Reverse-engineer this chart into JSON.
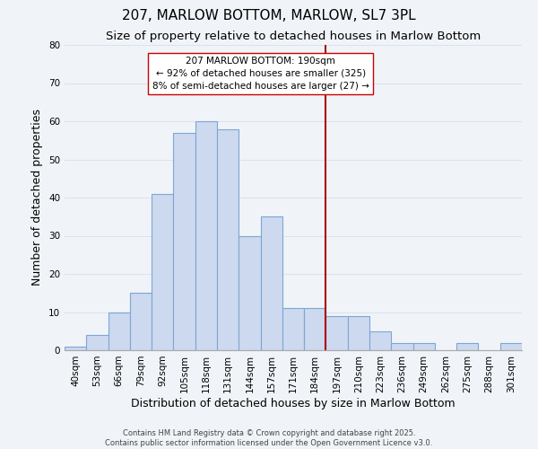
{
  "title": "207, MARLOW BOTTOM, MARLOW, SL7 3PL",
  "subtitle": "Size of property relative to detached houses in Marlow Bottom",
  "xlabel": "Distribution of detached houses by size in Marlow Bottom",
  "ylabel": "Number of detached properties",
  "bar_labels": [
    "40sqm",
    "53sqm",
    "66sqm",
    "79sqm",
    "92sqm",
    "105sqm",
    "118sqm",
    "131sqm",
    "144sqm",
    "157sqm",
    "171sqm",
    "184sqm",
    "197sqm",
    "210sqm",
    "223sqm",
    "236sqm",
    "249sqm",
    "262sqm",
    "275sqm",
    "288sqm",
    "301sqm"
  ],
  "bar_heights": [
    1,
    4,
    10,
    15,
    41,
    57,
    60,
    58,
    30,
    35,
    11,
    11,
    9,
    9,
    5,
    2,
    2,
    0,
    2,
    0,
    2
  ],
  "bar_color": "#ccd9ee",
  "bar_edgecolor": "#7da6d4",
  "ylim": [
    0,
    80
  ],
  "yticks": [
    0,
    10,
    20,
    30,
    40,
    50,
    60,
    70,
    80
  ],
  "vline_color": "#aa0000",
  "annotation_title": "207 MARLOW BOTTOM: 190sqm",
  "annotation_line1": "← 92% of detached houses are smaller (325)",
  "annotation_line2": "8% of semi-detached houses are larger (27) →",
  "footer1": "Contains HM Land Registry data © Crown copyright and database right 2025.",
  "footer2": "Contains public sector information licensed under the Open Government Licence v3.0.",
  "bg_color": "#f0f4f8",
  "grid_color": "#d8e4f0",
  "title_fontsize": 11,
  "subtitle_fontsize": 9.5,
  "axis_label_fontsize": 9,
  "tick_fontsize": 7.5,
  "vline_index": 11.5
}
